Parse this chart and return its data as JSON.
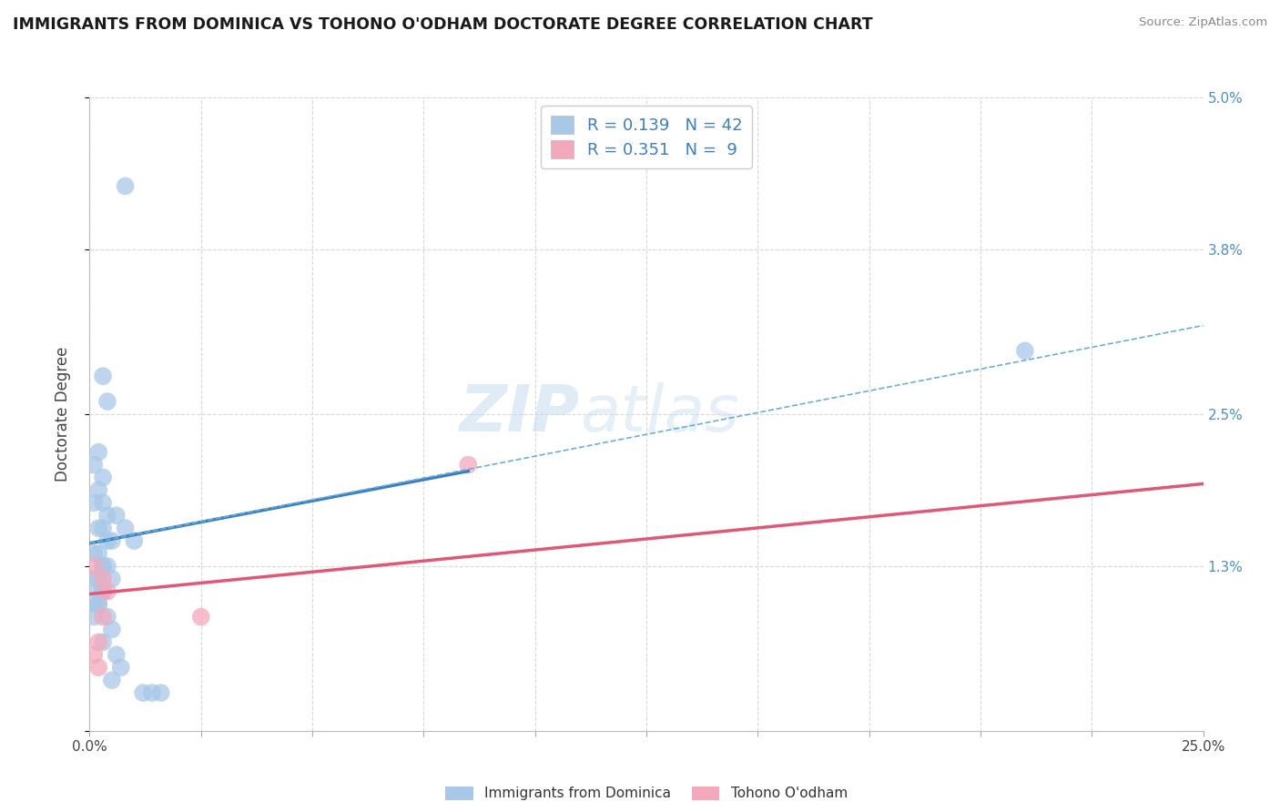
{
  "title": "IMMIGRANTS FROM DOMINICA VS TOHONO O'ODHAM DOCTORATE DEGREE CORRELATION CHART",
  "source_text": "Source: ZipAtlas.com",
  "ylabel": "Doctorate Degree",
  "xlim": [
    0.0,
    0.25
  ],
  "ylim": [
    0.0,
    0.05
  ],
  "yticks": [
    0.0,
    0.013,
    0.025,
    0.038,
    0.05
  ],
  "ytick_labels": [
    "",
    "1.3%",
    "2.5%",
    "3.8%",
    "5.0%"
  ],
  "xticks": [
    0.0,
    0.025,
    0.05,
    0.075,
    0.1,
    0.125,
    0.15,
    0.175,
    0.2,
    0.225,
    0.25
  ],
  "xtick_labels": [
    "0.0%",
    "",
    "",
    "",
    "",
    "",
    "",
    "",
    "",
    "",
    "25.0%"
  ],
  "blue_color": "#a8c8e8",
  "pink_color": "#f4a8bc",
  "blue_line_color": "#3a7fc1",
  "pink_line_color": "#e05878",
  "dashed_line_color": "#6baed6",
  "legend_r1": "R = 0.139",
  "legend_n1": "N = 42",
  "legend_r2": "R = 0.351",
  "legend_n2": "N =  9",
  "blue_scatter_x": [
    0.008,
    0.003,
    0.004,
    0.002,
    0.001,
    0.003,
    0.002,
    0.001,
    0.003,
    0.004,
    0.002,
    0.003,
    0.004,
    0.005,
    0.001,
    0.002,
    0.003,
    0.003,
    0.004,
    0.005,
    0.001,
    0.002,
    0.002,
    0.003,
    0.003,
    0.001,
    0.002,
    0.002,
    0.001,
    0.006,
    0.008,
    0.01,
    0.004,
    0.005,
    0.003,
    0.006,
    0.007,
    0.005,
    0.014,
    0.012,
    0.016,
    0.21
  ],
  "blue_scatter_y": [
    0.043,
    0.028,
    0.026,
    0.022,
    0.021,
    0.02,
    0.019,
    0.018,
    0.018,
    0.017,
    0.016,
    0.016,
    0.015,
    0.015,
    0.014,
    0.014,
    0.013,
    0.013,
    0.013,
    0.012,
    0.012,
    0.012,
    0.011,
    0.011,
    0.011,
    0.01,
    0.01,
    0.01,
    0.009,
    0.017,
    0.016,
    0.015,
    0.009,
    0.008,
    0.007,
    0.006,
    0.005,
    0.004,
    0.003,
    0.003,
    0.003,
    0.03
  ],
  "pink_scatter_x": [
    0.001,
    0.003,
    0.004,
    0.003,
    0.002,
    0.001,
    0.002,
    0.085,
    0.025
  ],
  "pink_scatter_y": [
    0.013,
    0.012,
    0.011,
    0.009,
    0.007,
    0.006,
    0.005,
    0.021,
    0.009
  ],
  "blue_line_x": [
    0.0,
    0.085
  ],
  "blue_line_y": [
    0.0148,
    0.0205
  ],
  "pink_line_x": [
    0.0,
    0.25
  ],
  "pink_line_y": [
    0.0108,
    0.0195
  ],
  "dashed_line_x": [
    0.0,
    0.25
  ],
  "dashed_line_y": [
    0.0148,
    0.032
  ],
  "watermark_zip": "ZIP",
  "watermark_atlas": "atlas",
  "background_color": "#ffffff",
  "grid_color": "#d8d8d8"
}
